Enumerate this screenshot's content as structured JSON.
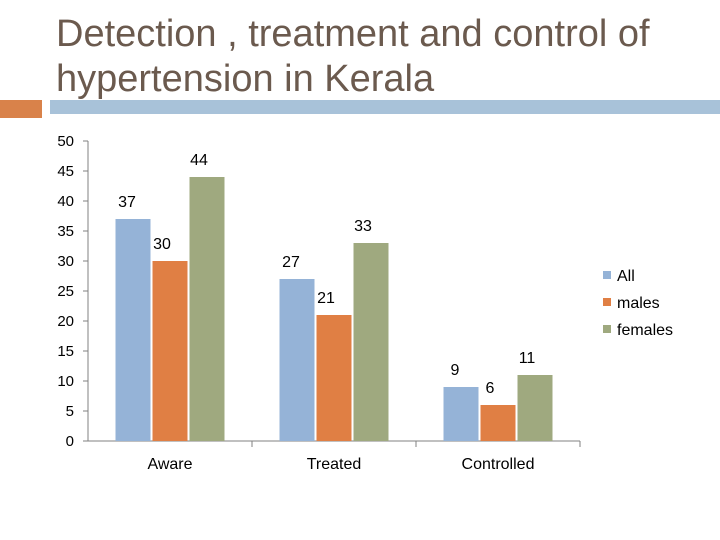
{
  "slide": {
    "title": "Detection , treatment and control of hypertension in Kerala",
    "accent_color": "#d9824a",
    "line_color": "#a8c2d9",
    "title_color": "#6b5a4e"
  },
  "chart_data": {
    "type": "bar",
    "title": "",
    "xlabel": "",
    "ylabel": "",
    "categories": [
      "Aware",
      "Treated",
      "Controlled"
    ],
    "series": [
      {
        "name": "All",
        "values": [
          37,
          27,
          9
        ],
        "color": "#95b3d7"
      },
      {
        "name": "males",
        "values": [
          30,
          21,
          6
        ],
        "color": "#e07f44"
      },
      {
        "name": "females",
        "values": [
          44,
          33,
          11
        ],
        "color": "#9fa97f"
      }
    ],
    "ylim": [
      0,
      50
    ],
    "yticks": [
      0,
      5,
      10,
      15,
      20,
      25,
      30,
      35,
      40,
      45,
      50
    ],
    "grid": false,
    "legend": "right"
  }
}
